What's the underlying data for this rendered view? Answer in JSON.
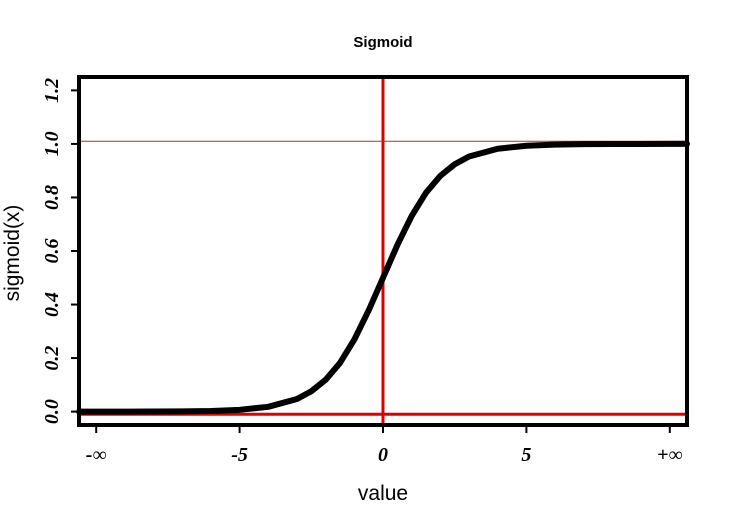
{
  "chart_data": {
    "type": "line",
    "title": "Sigmoid",
    "xlabel": "value",
    "ylabel": "sigmoid(x)",
    "xlim": [
      -10.6,
      10.6
    ],
    "ylim": [
      -0.05,
      1.25
    ],
    "x_ticks": [
      {
        "value": -10,
        "label": "-∞"
      },
      {
        "value": -5,
        "label": "-5"
      },
      {
        "value": 0,
        "label": "0"
      },
      {
        "value": 5,
        "label": "5"
      },
      {
        "value": 10,
        "label": "+∞"
      }
    ],
    "y_ticks": [
      {
        "value": 0.0,
        "label": "0.0"
      },
      {
        "value": 0.2,
        "label": "0.2"
      },
      {
        "value": 0.4,
        "label": "0.4"
      },
      {
        "value": 0.6,
        "label": "0.6"
      },
      {
        "value": 0.8,
        "label": "0.8"
      },
      {
        "value": 1.0,
        "label": "1.0"
      },
      {
        "value": 1.2,
        "label": "1.2"
      }
    ],
    "series": [
      {
        "function": "1/(1+exp(-x))",
        "color": "#000000",
        "x": [
          -10.6,
          -10,
          -9,
          -8,
          -7,
          -6,
          -5,
          -4,
          -3,
          -2.5,
          -2,
          -1.5,
          -1,
          -0.5,
          0,
          0.5,
          1,
          1.5,
          2,
          2.5,
          3,
          4,
          5,
          6,
          7,
          8,
          9,
          10,
          10.6
        ],
        "y": [
          2e-05,
          5e-05,
          0.00012,
          0.00034,
          0.00091,
          0.00247,
          0.0067,
          0.018,
          0.047,
          0.076,
          0.119,
          0.182,
          0.269,
          0.378,
          0.5,
          0.622,
          0.731,
          0.818,
          0.881,
          0.924,
          0.953,
          0.982,
          0.9933,
          0.9975,
          0.9991,
          0.9997,
          0.9999,
          1.0,
          1.0
        ]
      }
    ],
    "reference_lines": [
      {
        "orientation": "vertical",
        "value": 0,
        "color": "#dd0000"
      },
      {
        "orientation": "horizontal",
        "value": -0.01,
        "color": "#dd0000"
      },
      {
        "orientation": "horizontal",
        "value": 1.01,
        "color": "#b03030"
      }
    ],
    "grid": false,
    "legend": "none"
  }
}
